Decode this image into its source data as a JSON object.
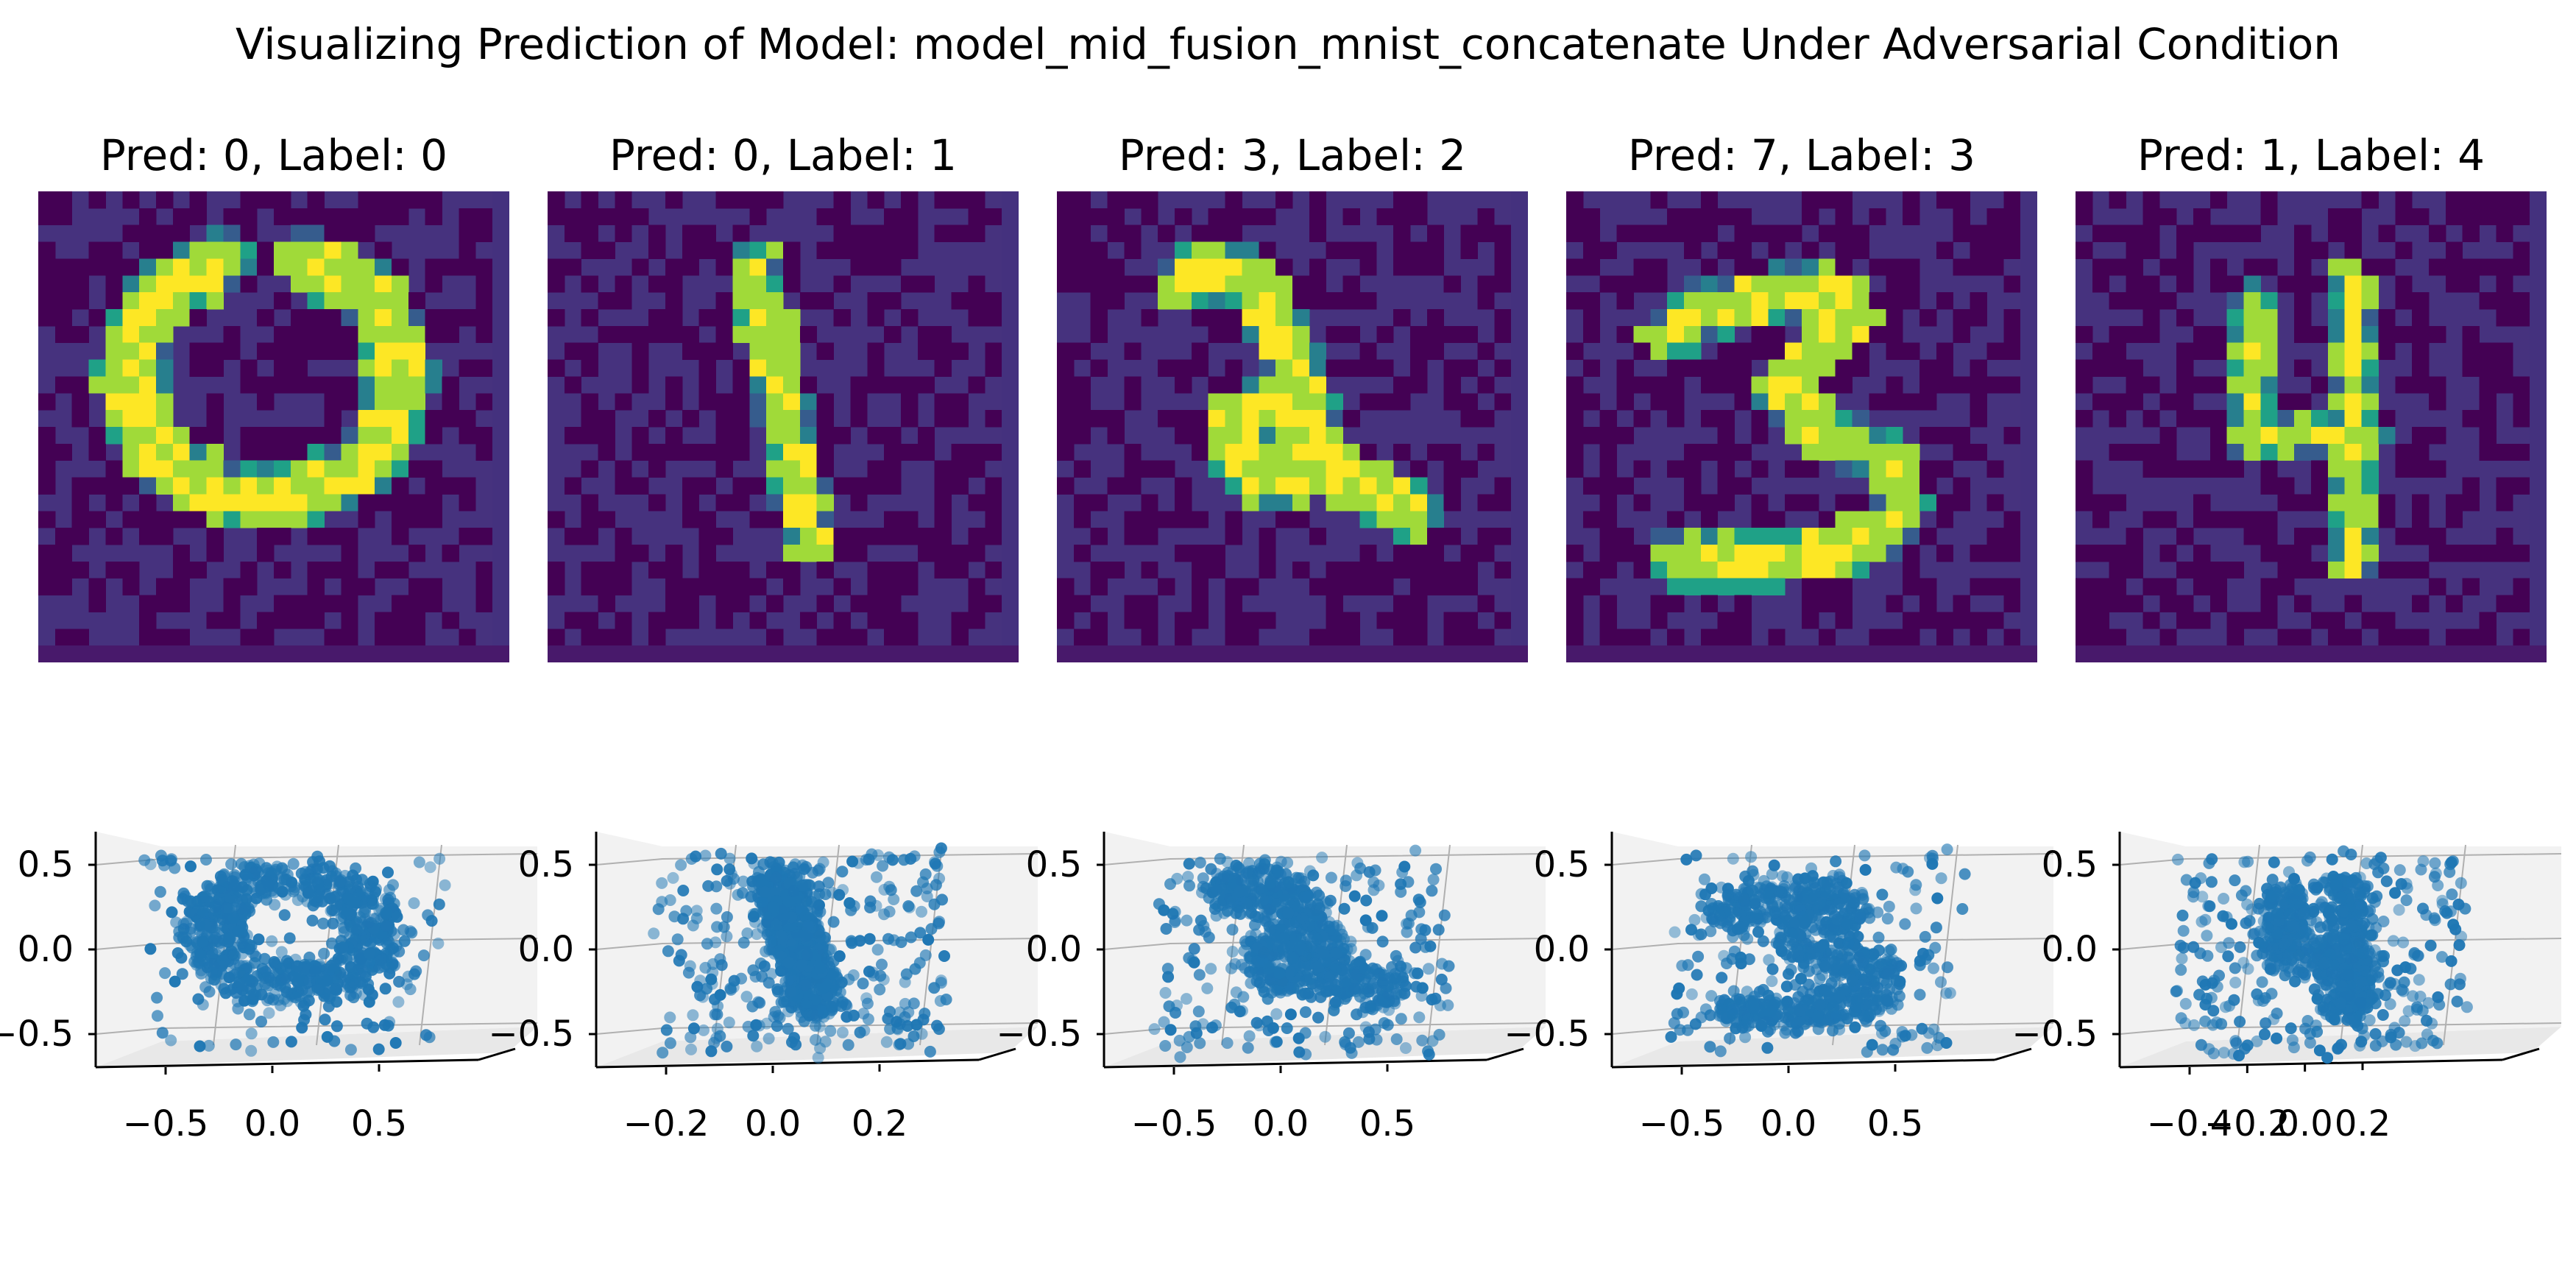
{
  "figure": {
    "suptitle": "Visualizing Prediction of Model: model_mid_fusion_mnist_concatenate Under Adversarial Condition"
  },
  "colors": {
    "viridis": [
      "#440154",
      "#46327e",
      "#365c8d",
      "#277f8e",
      "#1fa187",
      "#4ac16d",
      "#a0da39",
      "#fde725"
    ],
    "scatter_point": "#1f77b4",
    "pane_fill": "#f2f2f2",
    "grid_line": "#b0b0b0"
  },
  "panels": [
    {
      "title": "Pred: 0, Label: 0",
      "pred": 0,
      "label": 0,
      "digit": "0"
    },
    {
      "title": "Pred: 0, Label: 1",
      "pred": 0,
      "label": 1,
      "digit": "1"
    },
    {
      "title": "Pred: 3, Label: 2",
      "pred": 3,
      "label": 2,
      "digit": "2"
    },
    {
      "title": "Pred: 7, Label: 3",
      "pred": 7,
      "label": 3,
      "digit": "3"
    },
    {
      "title": "Pred: 1, Label: 4",
      "pred": 1,
      "label": 4,
      "digit": "4"
    }
  ],
  "chart_data": [
    {
      "type": "scatter",
      "projection": "3d",
      "digit": "0",
      "xticks": [
        "−0.5",
        "0.0",
        "0.5"
      ],
      "zticks": [
        "0.5",
        "0.0",
        "−0.5"
      ],
      "xlim": [
        -0.8,
        0.8
      ],
      "zlim": [
        -0.7,
        0.7
      ],
      "grid": true
    },
    {
      "type": "scatter",
      "projection": "3d",
      "digit": "1",
      "xticks": [
        "−0.2",
        "0.0",
        "0.2"
      ],
      "zticks": [
        "0.5",
        "0.0",
        "−0.5"
      ],
      "xlim": [
        -0.35,
        0.35
      ],
      "zlim": [
        -0.7,
        0.7
      ],
      "grid": true
    },
    {
      "type": "scatter",
      "projection": "3d",
      "digit": "2",
      "xticks": [
        "−0.5",
        "0.0",
        "0.5"
      ],
      "zticks": [
        "0.5",
        "0.0",
        "−0.5"
      ],
      "xlim": [
        -0.8,
        0.8
      ],
      "zlim": [
        -0.7,
        0.7
      ],
      "grid": true
    },
    {
      "type": "scatter",
      "projection": "3d",
      "digit": "3",
      "xticks": [
        "−0.5",
        "0.0",
        "0.5"
      ],
      "zticks": [
        "0.5",
        "0.0",
        "−0.5"
      ],
      "xlim": [
        -0.8,
        0.8
      ],
      "zlim": [
        -0.7,
        0.7
      ],
      "grid": true
    },
    {
      "type": "scatter",
      "projection": "3d",
      "digit": "4",
      "xticks": [
        "−0.4",
        "−0.2",
        "0.0",
        "0.2"
      ],
      "zticks": [
        "0.5",
        "0.0",
        "−0.5"
      ],
      "xlim": [
        -0.45,
        0.45
      ],
      "zlim": [
        -0.7,
        0.7
      ],
      "grid": true
    }
  ]
}
